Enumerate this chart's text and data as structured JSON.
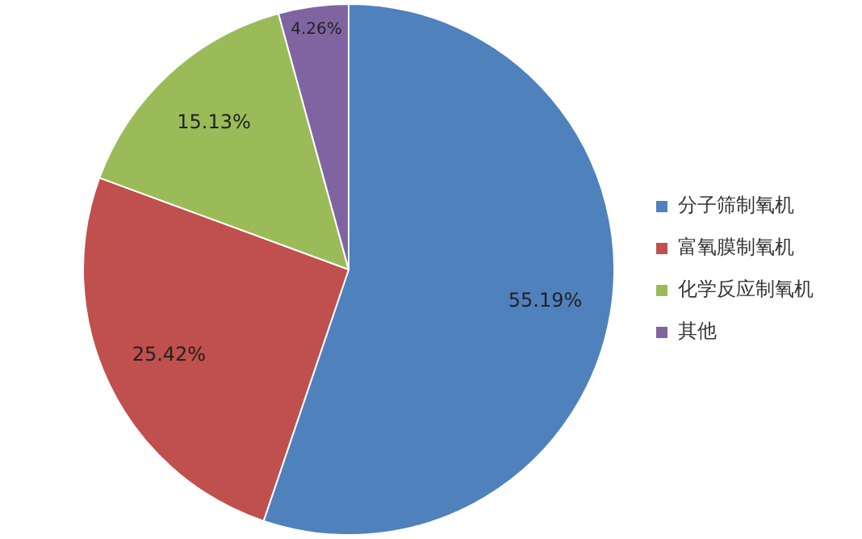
{
  "chart_data": {
    "type": "pie",
    "categories": [
      "分子筛制氧机",
      "富氧膜制氧机",
      "化学反应制氧机",
      "其他"
    ],
    "values": [
      55.19,
      25.42,
      15.13,
      4.26
    ],
    "value_labels": [
      "55.19%",
      "25.42%",
      "15.13%",
      "4.26%"
    ],
    "colors": [
      "#4f81bd",
      "#c0504d",
      "#9bbb59",
      "#8064a2"
    ],
    "legend": "right"
  }
}
